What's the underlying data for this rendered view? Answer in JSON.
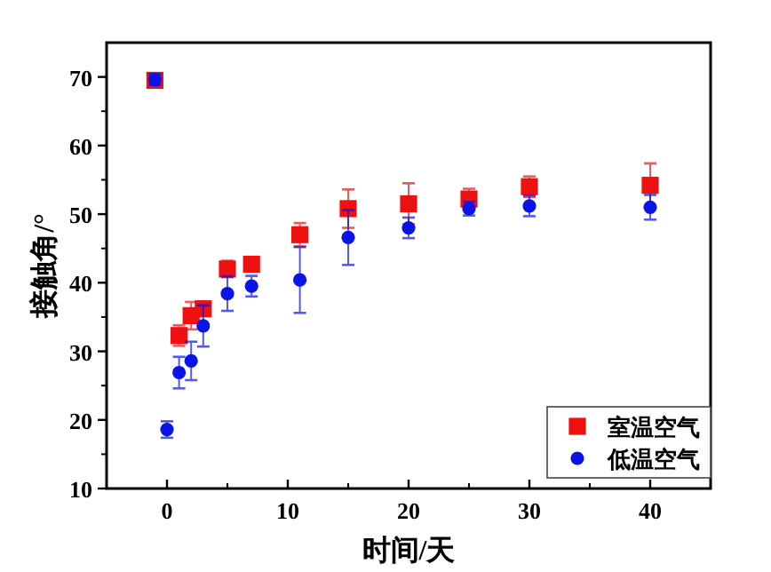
{
  "chart_data": {
    "type": "scatter",
    "xlabel": "时间/天",
    "ylabel": "接触角/°",
    "xlim": [
      -5,
      45
    ],
    "ylim": [
      10,
      75
    ],
    "xticks": [
      0,
      10,
      20,
      30,
      40
    ],
    "yticks": [
      10,
      20,
      30,
      40,
      50,
      60,
      70
    ],
    "legend": "bottom right",
    "grid": false,
    "series": [
      {
        "name": "室温空气",
        "color": "#ee1111",
        "marker": "square",
        "x": [
          -1,
          1,
          2,
          3,
          5,
          7,
          11,
          15,
          20,
          25,
          30,
          40
        ],
        "values": [
          69.5,
          32.3,
          35.2,
          36.2,
          42,
          42.7,
          47,
          50.8,
          51.5,
          52.2,
          54,
          54.2
        ],
        "errors": [
          0.8,
          1.5,
          2,
          1,
          1.2,
          1,
          1.7,
          2.8,
          3,
          1.5,
          1.5,
          3.2
        ]
      },
      {
        "name": "低温空气",
        "color": "#0a14e6",
        "marker": "circle",
        "x": [
          -1,
          0,
          1,
          2,
          3,
          5,
          7,
          11,
          15,
          20,
          25,
          30,
          40
        ],
        "values": [
          69.6,
          18.6,
          26.9,
          28.6,
          33.7,
          38.4,
          39.5,
          40.4,
          46.6,
          48,
          50.8,
          51.2,
          51
        ],
        "errors": [
          0.8,
          1.2,
          2.3,
          2.8,
          3,
          2.5,
          1.5,
          4.8,
          4,
          1.5,
          1,
          1.5,
          1.8
        ]
      }
    ]
  }
}
